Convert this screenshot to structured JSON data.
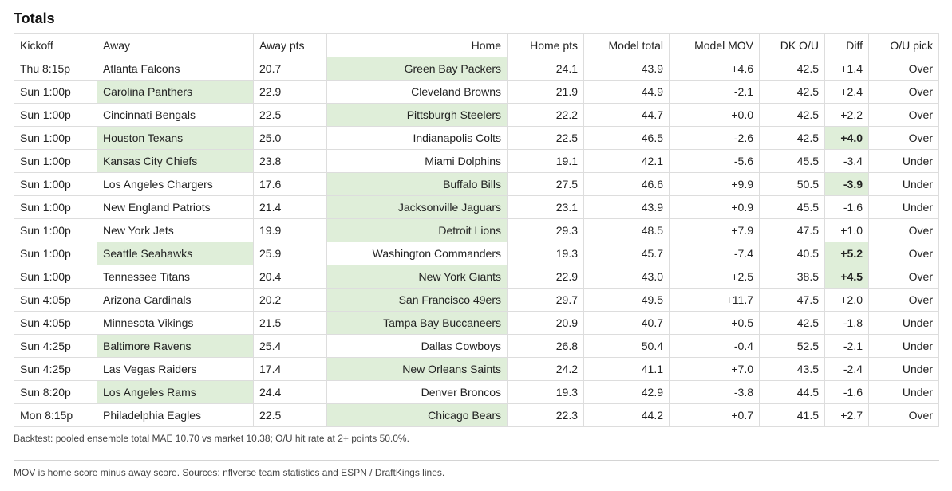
{
  "title": "Totals",
  "columns": [
    "Kickoff",
    "Away",
    "Away pts",
    "Home",
    "Home pts",
    "Model total",
    "Model MOV",
    "DK O/U",
    "Diff",
    "O/U pick"
  ],
  "rows": [
    {
      "kickoff": "Thu 8:15p",
      "away": "Atlanta Falcons",
      "away_pts": "20.7",
      "home": "Green Bay Packers",
      "home_pts": "24.1",
      "model_total": "43.9",
      "model_mov": "+4.6",
      "dk_ou": "42.5",
      "diff": "+1.4",
      "pick": "Over",
      "winner": "home",
      "diff_bold": false,
      "diff_highlight": false
    },
    {
      "kickoff": "Sun 1:00p",
      "away": "Carolina Panthers",
      "away_pts": "22.9",
      "home": "Cleveland Browns",
      "home_pts": "21.9",
      "model_total": "44.9",
      "model_mov": "-2.1",
      "dk_ou": "42.5",
      "diff": "+2.4",
      "pick": "Over",
      "winner": "away",
      "diff_bold": false,
      "diff_highlight": false
    },
    {
      "kickoff": "Sun 1:00p",
      "away": "Cincinnati Bengals",
      "away_pts": "22.5",
      "home": "Pittsburgh Steelers",
      "home_pts": "22.2",
      "model_total": "44.7",
      "model_mov": "+0.0",
      "dk_ou": "42.5",
      "diff": "+2.2",
      "pick": "Over",
      "winner": "home",
      "diff_bold": false,
      "diff_highlight": false
    },
    {
      "kickoff": "Sun 1:00p",
      "away": "Houston Texans",
      "away_pts": "25.0",
      "home": "Indianapolis Colts",
      "home_pts": "22.5",
      "model_total": "46.5",
      "model_mov": "-2.6",
      "dk_ou": "42.5",
      "diff": "+4.0",
      "pick": "Over",
      "winner": "away",
      "diff_bold": true,
      "diff_highlight": true
    },
    {
      "kickoff": "Sun 1:00p",
      "away": "Kansas City Chiefs",
      "away_pts": "23.8",
      "home": "Miami Dolphins",
      "home_pts": "19.1",
      "model_total": "42.1",
      "model_mov": "-5.6",
      "dk_ou": "45.5",
      "diff": "-3.4",
      "pick": "Under",
      "winner": "away",
      "diff_bold": false,
      "diff_highlight": false
    },
    {
      "kickoff": "Sun 1:00p",
      "away": "Los Angeles Chargers",
      "away_pts": "17.6",
      "home": "Buffalo Bills",
      "home_pts": "27.5",
      "model_total": "46.6",
      "model_mov": "+9.9",
      "dk_ou": "50.5",
      "diff": "-3.9",
      "pick": "Under",
      "winner": "home",
      "diff_bold": true,
      "diff_highlight": true
    },
    {
      "kickoff": "Sun 1:00p",
      "away": "New England Patriots",
      "away_pts": "21.4",
      "home": "Jacksonville Jaguars",
      "home_pts": "23.1",
      "model_total": "43.9",
      "model_mov": "+0.9",
      "dk_ou": "45.5",
      "diff": "-1.6",
      "pick": "Under",
      "winner": "home",
      "diff_bold": false,
      "diff_highlight": false
    },
    {
      "kickoff": "Sun 1:00p",
      "away": "New York Jets",
      "away_pts": "19.9",
      "home": "Detroit Lions",
      "home_pts": "29.3",
      "model_total": "48.5",
      "model_mov": "+7.9",
      "dk_ou": "47.5",
      "diff": "+1.0",
      "pick": "Over",
      "winner": "home",
      "diff_bold": false,
      "diff_highlight": false
    },
    {
      "kickoff": "Sun 1:00p",
      "away": "Seattle Seahawks",
      "away_pts": "25.9",
      "home": "Washington Commanders",
      "home_pts": "19.3",
      "model_total": "45.7",
      "model_mov": "-7.4",
      "dk_ou": "40.5",
      "diff": "+5.2",
      "pick": "Over",
      "winner": "away",
      "diff_bold": true,
      "diff_highlight": true
    },
    {
      "kickoff": "Sun 1:00p",
      "away": "Tennessee Titans",
      "away_pts": "20.4",
      "home": "New York Giants",
      "home_pts": "22.9",
      "model_total": "43.0",
      "model_mov": "+2.5",
      "dk_ou": "38.5",
      "diff": "+4.5",
      "pick": "Over",
      "winner": "home",
      "diff_bold": true,
      "diff_highlight": true
    },
    {
      "kickoff": "Sun 4:05p",
      "away": "Arizona Cardinals",
      "away_pts": "20.2",
      "home": "San Francisco 49ers",
      "home_pts": "29.7",
      "model_total": "49.5",
      "model_mov": "+11.7",
      "dk_ou": "47.5",
      "diff": "+2.0",
      "pick": "Over",
      "winner": "home",
      "diff_bold": false,
      "diff_highlight": false
    },
    {
      "kickoff": "Sun 4:05p",
      "away": "Minnesota Vikings",
      "away_pts": "21.5",
      "home": "Tampa Bay Buccaneers",
      "home_pts": "20.9",
      "model_total": "40.7",
      "model_mov": "+0.5",
      "dk_ou": "42.5",
      "diff": "-1.8",
      "pick": "Under",
      "winner": "home",
      "diff_bold": false,
      "diff_highlight": false
    },
    {
      "kickoff": "Sun 4:25p",
      "away": "Baltimore Ravens",
      "away_pts": "25.4",
      "home": "Dallas Cowboys",
      "home_pts": "26.8",
      "model_total": "50.4",
      "model_mov": "-0.4",
      "dk_ou": "52.5",
      "diff": "-2.1",
      "pick": "Under",
      "winner": "away",
      "diff_bold": false,
      "diff_highlight": false
    },
    {
      "kickoff": "Sun 4:25p",
      "away": "Las Vegas Raiders",
      "away_pts": "17.4",
      "home": "New Orleans Saints",
      "home_pts": "24.2",
      "model_total": "41.1",
      "model_mov": "+7.0",
      "dk_ou": "43.5",
      "diff": "-2.4",
      "pick": "Under",
      "winner": "home",
      "diff_bold": false,
      "diff_highlight": false
    },
    {
      "kickoff": "Sun 8:20p",
      "away": "Los Angeles Rams",
      "away_pts": "24.4",
      "home": "Denver Broncos",
      "home_pts": "19.3",
      "model_total": "42.9",
      "model_mov": "-3.8",
      "dk_ou": "44.5",
      "diff": "-1.6",
      "pick": "Under",
      "winner": "away",
      "diff_bold": false,
      "diff_highlight": false
    },
    {
      "kickoff": "Mon 8:15p",
      "away": "Philadelphia Eagles",
      "away_pts": "22.5",
      "home": "Chicago Bears",
      "home_pts": "22.3",
      "model_total": "44.2",
      "model_mov": "+0.7",
      "dk_ou": "41.5",
      "diff": "+2.7",
      "pick": "Over",
      "winner": "home",
      "diff_bold": false,
      "diff_highlight": false
    }
  ],
  "backtest_note": "Backtest: pooled ensemble total MAE 10.70 vs market 10.38; O/U hit rate at 2+ points 50.0%.",
  "footer_note": "MOV is home score minus away score. Sources: nflverse team statistics and ESPN / DraftKings lines.",
  "colors": {
    "winner_highlight": "#dfeed9",
    "border": "#dddddd"
  }
}
